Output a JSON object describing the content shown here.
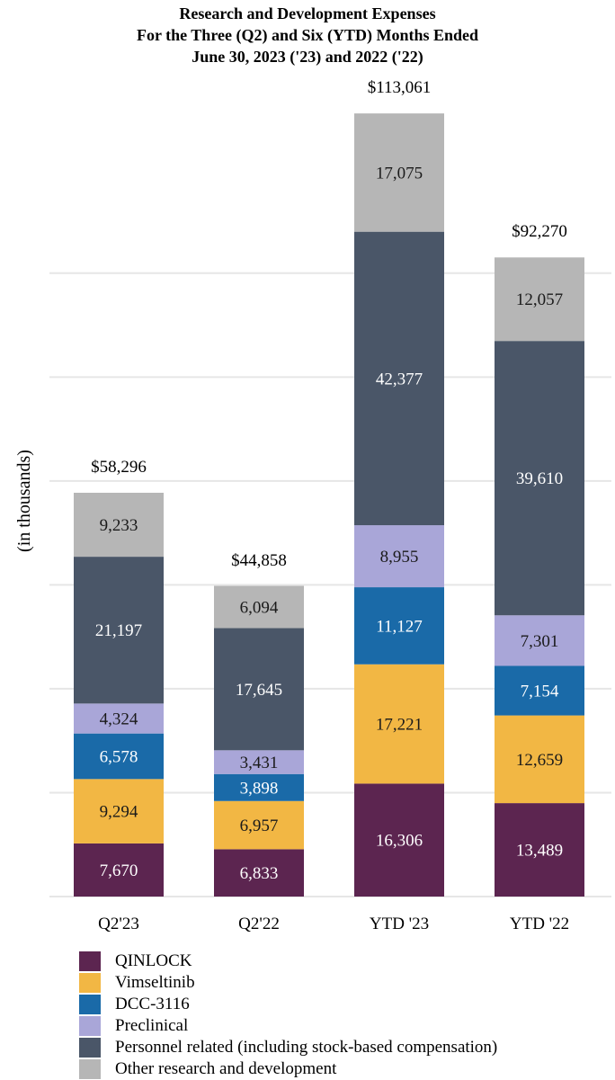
{
  "chart_data": {
    "type": "bar",
    "stacked": true,
    "title": [
      "Research and Development Expenses",
      "For the Three (Q2) and Six (YTD) Months Ended",
      "June 30, 2023 ('23) and 2022 ('22)"
    ],
    "xlabel": "",
    "ylabel": "(in thousands)",
    "ylim": [
      0,
      120000
    ],
    "grid": true,
    "legend_position": "bottom",
    "categories": [
      "Q2'23",
      "Q2'22",
      "YTD '23",
      "YTD '22"
    ],
    "totals": [
      "$58,296",
      "$44,858",
      "$113,061",
      "$92,270"
    ],
    "series": [
      {
        "name": "QINLOCK",
        "color": "#5c2550",
        "label_color": "#ffffff",
        "values": [
          7670,
          6833,
          16306,
          13489
        ],
        "labels": [
          "7,670",
          "6,833",
          "16,306",
          "13,489"
        ]
      },
      {
        "name": "Vimseltinib",
        "color": "#f2b744",
        "label_color": "#1a1a1a",
        "values": [
          9294,
          6957,
          17221,
          12659
        ],
        "labels": [
          "9,294",
          "6,957",
          "17,221",
          "12,659"
        ]
      },
      {
        "name": "DCC-3116",
        "color": "#1a6aa8",
        "label_color": "#ffffff",
        "values": [
          6578,
          3898,
          11127,
          7154
        ],
        "labels": [
          "6,578",
          "3,898",
          "11,127",
          "7,154"
        ]
      },
      {
        "name": "Preclinical",
        "color": "#a9a6d8",
        "label_color": "#1a1a1a",
        "values": [
          4324,
          3431,
          8955,
          7301
        ],
        "labels": [
          "4,324",
          "3,431",
          "8,955",
          "7,301"
        ]
      },
      {
        "name": "Personnel related (including stock-based compensation)",
        "color": "#4a5668",
        "label_color": "#ffffff",
        "values": [
          21197,
          17645,
          42377,
          39610
        ],
        "labels": [
          "21,197",
          "17,645",
          "42,377",
          "39,610"
        ]
      },
      {
        "name": "Other research and development",
        "color": "#b6b6b6",
        "label_color": "#1a1a1a",
        "values": [
          9233,
          6094,
          17075,
          12057
        ],
        "labels": [
          "9,233",
          "6,094",
          "17,075",
          "12,057"
        ]
      }
    ]
  }
}
